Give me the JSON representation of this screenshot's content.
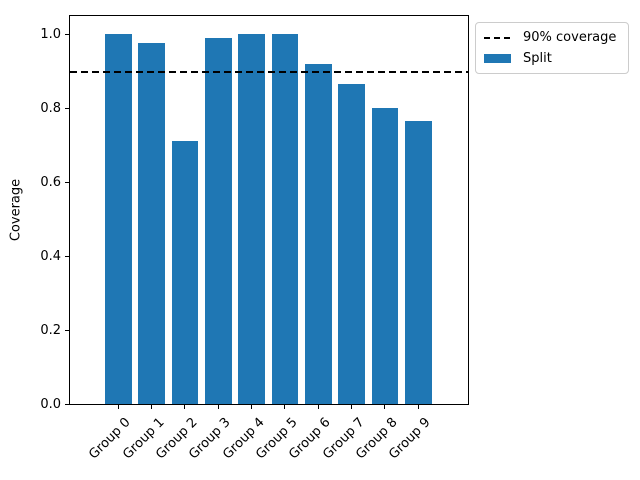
{
  "chart_data": {
    "type": "bar",
    "title": "",
    "xlabel": "",
    "ylabel": "Coverage",
    "categories": [
      "Group 0",
      "Group 1",
      "Group 2",
      "Group 3",
      "Group 4",
      "Group 5",
      "Group 6",
      "Group 7",
      "Group 8",
      "Group 9"
    ],
    "series": [
      {
        "name": "Split",
        "values": [
          1.0,
          0.975,
          0.71,
          0.99,
          1.0,
          1.0,
          0.92,
          0.865,
          0.8,
          0.765
        ]
      }
    ],
    "bar_color": "#1f77b4",
    "ylim": [
      0,
      1.05
    ],
    "yticks": [
      "0.0",
      "0.2",
      "0.4",
      "0.6",
      "0.8",
      "1.0"
    ],
    "ytick_values": [
      0.0,
      0.2,
      0.4,
      0.6,
      0.8,
      1.0
    ],
    "x_tick_rotation": 45,
    "grid": false,
    "reference_line": {
      "value": 0.9,
      "label": "90% coverage",
      "style": "dashed",
      "color": "#000000"
    },
    "legend": {
      "position": "outside-upper-right",
      "entries": [
        {
          "label": "90% coverage",
          "type": "dashed-line",
          "color": "#000000"
        },
        {
          "label": "Split",
          "type": "patch",
          "color": "#1f77b4"
        }
      ]
    }
  }
}
